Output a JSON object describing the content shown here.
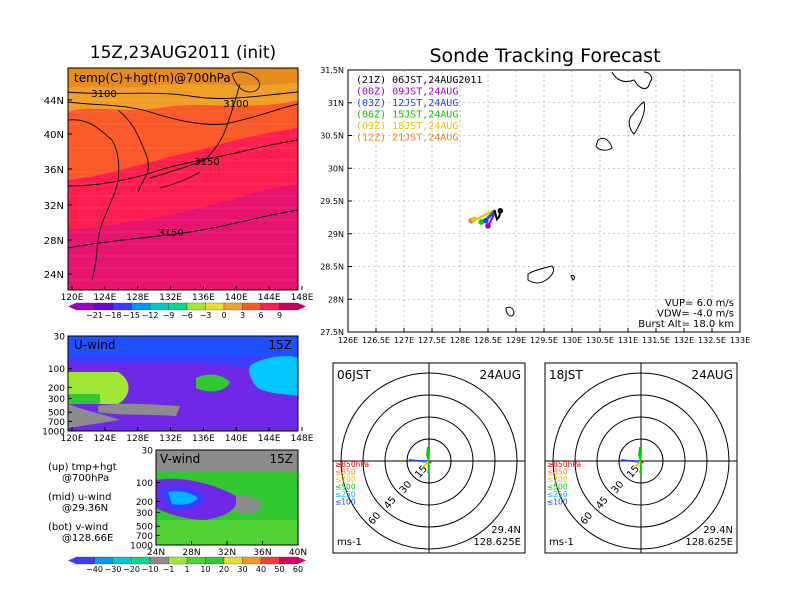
{
  "titles": {
    "left": "15Z,23AUG2011 (init)",
    "right": "Sonde Tracking Forecast"
  },
  "map_panel": {
    "label": "temp(C)+hgt(m)@700hPa",
    "contour_labels": [
      "3100",
      "3100",
      "3150",
      "3150"
    ],
    "lat_ticks": [
      "44N",
      "40N",
      "36N",
      "32N",
      "28N",
      "24N"
    ],
    "lon_ticks": [
      "120E",
      "124E",
      "128E",
      "132E",
      "136E",
      "140E",
      "144E",
      "148E"
    ]
  },
  "temp_colorbar": {
    "labels": [
      "−21",
      "−18",
      "−15",
      "−12",
      "−9",
      "−6",
      "−3",
      "0",
      "3",
      "6",
      "9"
    ],
    "colors": [
      "#a000c8",
      "#6e00dc",
      "#3c3cff",
      "#0096ff",
      "#00c8c8",
      "#00dc8c",
      "#a0e632",
      "#e6dc32",
      "#f0a028",
      "#fa5a28",
      "#ff1e50",
      "#c8005a"
    ]
  },
  "uwind_panel": {
    "label": "U-wind",
    "time": "15Z",
    "p_ticks": [
      "30",
      "100",
      "200",
      "300",
      "500",
      "700",
      "1000"
    ],
    "lon_ticks": [
      "120E",
      "124E",
      "128E",
      "132E",
      "136E",
      "140E",
      "144E",
      "148E"
    ]
  },
  "vwind_panel": {
    "label": "V-wind",
    "time": "15Z",
    "p_ticks": [
      "30",
      "100",
      "200",
      "300",
      "500",
      "700",
      "1000"
    ],
    "lat_ticks": [
      "24N",
      "28N",
      "32N",
      "36N",
      "40N"
    ]
  },
  "legend_notes": [
    {
      "line1": "(up) tmp+hgt",
      "line2": "@700hPa"
    },
    {
      "line1": "(mid) u-wind",
      "line2": "@29.36N"
    },
    {
      "line1": "(bot) v-wind",
      "line2": "@128.66E"
    }
  ],
  "wind_colorbar": {
    "labels": [
      "−40",
      "−30",
      "−20",
      "−10",
      "−1",
      "1",
      "10",
      "20",
      "30",
      "40",
      "50",
      "60"
    ],
    "colors": [
      "#3c3cff",
      "#0096ff",
      "#00c8c8",
      "#00dc8c",
      "#8c8c8c",
      "#a0e632",
      "#50d232",
      "#32c832",
      "#e6dc32",
      "#fa9628",
      "#ff3c32",
      "#dc0064"
    ]
  },
  "track_panel": {
    "legend": [
      {
        "text": "(21Z)  06JST,24AUG2011",
        "color": "#000000"
      },
      {
        "text": "(00Z)  09JST,24AUG",
        "color": "#a000c8"
      },
      {
        "text": "(03Z)  12JST,24AUG",
        "color": "#1e3cff"
      },
      {
        "text": "(06Z)  15JST,24AUG",
        "color": "#00c800"
      },
      {
        "text": "(09Z)  18JST,24AUG",
        "color": "#e6c800"
      },
      {
        "text": "(12Z)  21JST,24AUG",
        "color": "#f08228"
      }
    ],
    "info": [
      "VUP=  6.0  m/s",
      "VDW= -4.0  m/s",
      "Burst Alt=  18.0  km"
    ]
  },
  "hodographs": [
    {
      "time": "06JST",
      "date": "24AUG",
      "lat": "29.4N",
      "lon": "128.625E",
      "unit": "ms-1",
      "rings": [
        "15",
        "30",
        "45",
        "60"
      ],
      "levels": [
        "≥850hPa",
        "≤850",
        "≤700",
        "≤500",
        "≤250",
        "≤100"
      ]
    },
    {
      "time": "18JST",
      "date": "24AUG",
      "lat": "29.4N",
      "lon": "128.625E",
      "unit": "ms-1",
      "rings": [
        "15",
        "30",
        "45",
        "60"
      ],
      "levels": [
        "≥850hPa",
        "≤850",
        "≤700",
        "≤500",
        "≤250",
        "≤100"
      ]
    }
  ],
  "level_colors": [
    "#ff0000",
    "#f08228",
    "#e6c800",
    "#00c800",
    "#00b4ff",
    "#1e3cff"
  ],
  "chart_data": {
    "type": "line",
    "title": "Sonde Tracking Forecast",
    "xlabel": "",
    "ylabel": "",
    "x_ticks": [
      "126E",
      "126.5E",
      "127E",
      "127.5E",
      "128E",
      "128.5E",
      "129E",
      "129.5E",
      "130E",
      "130.5E",
      "131E",
      "131.5E",
      "132E",
      "132.5E",
      "133E"
    ],
    "y_ticks": [
      "27.5N",
      "28N",
      "28.5N",
      "29N",
      "29.5N",
      "30N",
      "30.5N",
      "31N",
      "31.5N"
    ],
    "xlim": [
      126,
      133
    ],
    "ylim": [
      27.5,
      31.5
    ],
    "grid": true,
    "series": [
      {
        "name": "(21Z)  06JST,24AUG2011",
        "color": "#000000",
        "lon": [
          128.62,
          128.64,
          128.66,
          128.7,
          128.72
        ],
        "lat": [
          29.36,
          29.28,
          29.22,
          29.26,
          29.35
        ]
      },
      {
        "name": "(00Z)  09JST,24AUG",
        "color": "#a000c8",
        "lon": [
          128.62,
          128.6,
          128.55,
          128.5
        ],
        "lat": [
          29.36,
          29.28,
          29.2,
          29.12
        ]
      },
      {
        "name": "(03Z)  12JST,24AUG",
        "color": "#1e3cff",
        "lon": [
          128.62,
          128.58,
          128.52,
          128.46
        ],
        "lat": [
          29.36,
          29.3,
          29.25,
          29.2
        ]
      },
      {
        "name": "(06Z)  15JST,24AUG",
        "color": "#00c800",
        "lon": [
          128.62,
          128.55,
          128.48,
          128.38
        ],
        "lat": [
          29.36,
          29.3,
          29.24,
          29.18
        ]
      },
      {
        "name": "(09Z)  18JST,24AUG",
        "color": "#e6c800",
        "lon": [
          128.62,
          128.5,
          128.38,
          128.25
        ],
        "lat": [
          29.36,
          29.31,
          29.25,
          29.22
        ]
      },
      {
        "name": "(12Z)  21JST,24AUG",
        "color": "#f08228",
        "lon": [
          128.62,
          128.5,
          128.36,
          128.2
        ],
        "lat": [
          29.36,
          29.31,
          29.25,
          29.2
        ]
      }
    ]
  }
}
